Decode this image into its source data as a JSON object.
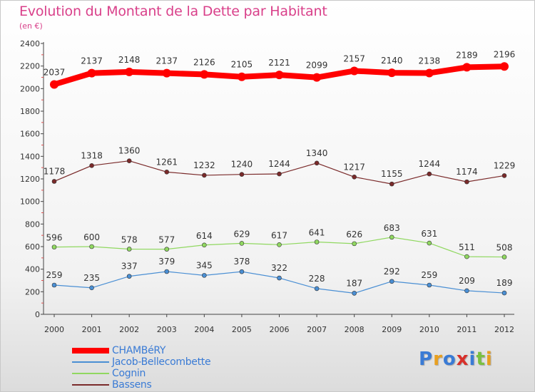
{
  "title": "Evolution du Montant de la Dette par Habitant",
  "subtitle": "(en €)",
  "logo": {
    "text": "Proxiti"
  },
  "chart_data": {
    "type": "line",
    "categories": [
      "2000",
      "2001",
      "2002",
      "2003",
      "2004",
      "2005",
      "2006",
      "2007",
      "2008",
      "2009",
      "2010",
      "2011",
      "2012"
    ],
    "ylim": [
      0,
      2400
    ],
    "yticks": [
      0,
      200,
      400,
      600,
      800,
      1000,
      1200,
      1400,
      1600,
      1800,
      2000,
      2200,
      2400
    ],
    "grid": false,
    "legend_position": "bottom-left",
    "series": [
      {
        "name": "CHAMBéRY",
        "color": "#ff0000",
        "values": [
          2037,
          2137,
          2148,
          2137,
          2126,
          2105,
          2121,
          2099,
          2157,
          2140,
          2138,
          2189,
          2196
        ]
      },
      {
        "name": "Jacob-Bellecombette",
        "color": "#4a8fd4",
        "values": [
          259,
          235,
          337,
          379,
          345,
          378,
          322,
          228,
          187,
          292,
          259,
          209,
          189
        ]
      },
      {
        "name": "Cognin",
        "color": "#90d860",
        "values": [
          596,
          600,
          578,
          577,
          614,
          629,
          617,
          641,
          626,
          683,
          631,
          511,
          508
        ]
      },
      {
        "name": "Bassens",
        "color": "#7a2a2a",
        "values": [
          1178,
          1318,
          1360,
          1261,
          1232,
          1240,
          1244,
          1340,
          1217,
          1155,
          1244,
          1174,
          1229
        ]
      }
    ]
  }
}
